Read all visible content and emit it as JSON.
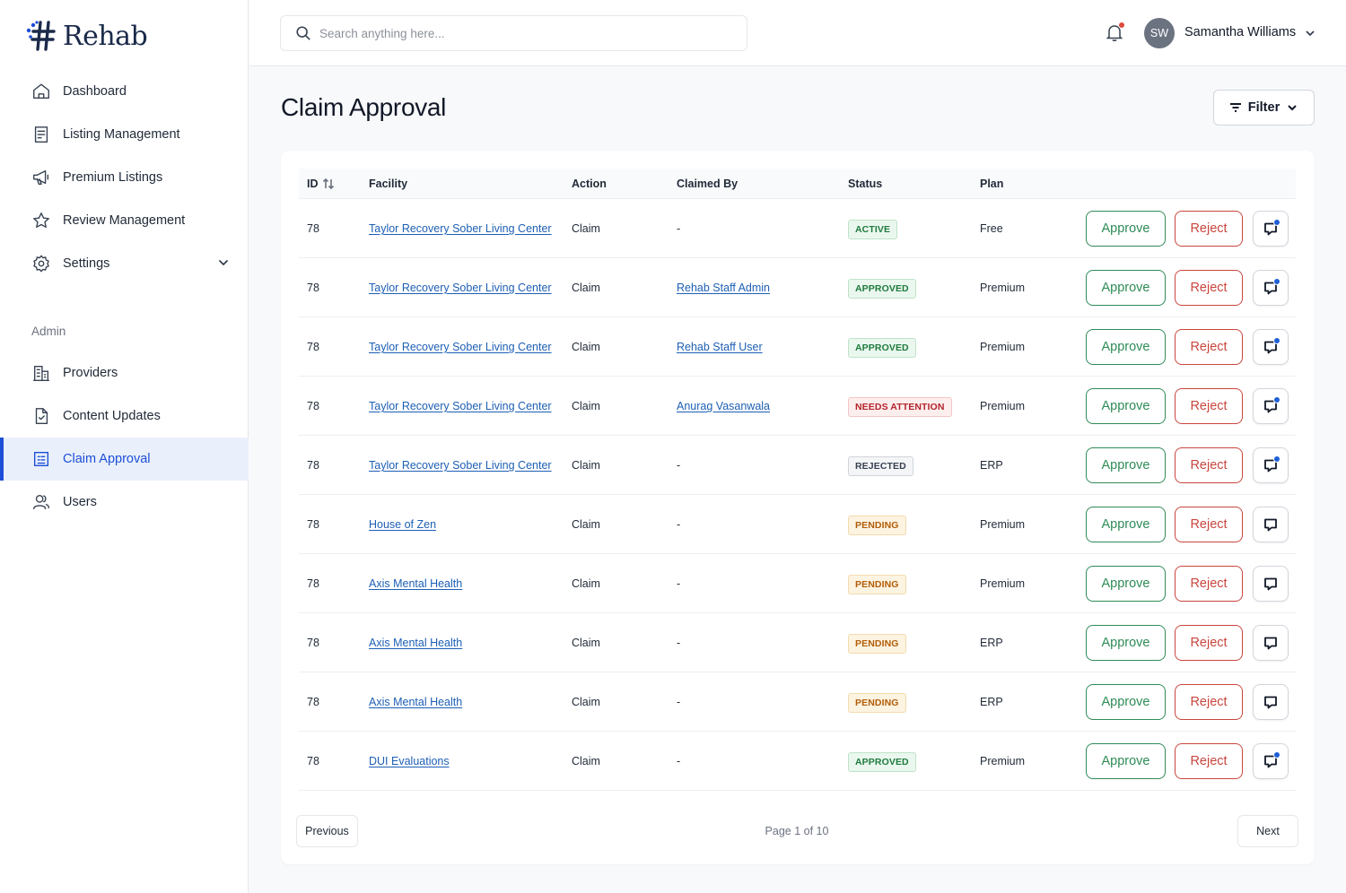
{
  "brand": {
    "name": "Rehab",
    "logo_icon": "rehab-logo-icon",
    "accent": "#1d4ed8"
  },
  "sidebar": {
    "items": [
      {
        "label": "Dashboard",
        "icon": "home-icon"
      },
      {
        "label": "Listing Management",
        "icon": "document-list-icon"
      },
      {
        "label": "Premium Listings",
        "icon": "megaphone-icon"
      },
      {
        "label": "Review Management",
        "icon": "star-icon"
      },
      {
        "label": "Settings",
        "icon": "gear-icon"
      }
    ],
    "admin_label": "Admin",
    "admin_items": [
      {
        "label": "Providers",
        "icon": "building-icon"
      },
      {
        "label": "Content Updates",
        "icon": "file-check-icon"
      },
      {
        "label": "Claim Approval",
        "icon": "clipboard-list-icon",
        "active": true
      },
      {
        "label": "Users",
        "icon": "users-icon"
      }
    ]
  },
  "topbar": {
    "search_placeholder": "Search anything here...",
    "user_initials": "SW",
    "user_name": "Samantha Williams"
  },
  "page": {
    "title": "Claim Approval",
    "filter_label": "Filter"
  },
  "table": {
    "columns": {
      "id": "ID",
      "facility": "Facility",
      "action": "Action",
      "claimed_by": "Claimed By",
      "status": "Status",
      "plan": "Plan"
    },
    "approve_label": "Approve",
    "reject_label": "Reject",
    "rows": [
      {
        "id": "78",
        "facility": "Taylor Recovery Sober Living Center",
        "action": "Claim",
        "claimed_by": "-",
        "claimed_link": false,
        "status": "ACTIVE",
        "status_kind": "active",
        "plan": "Free",
        "has_comment": true
      },
      {
        "id": "78",
        "facility": "Taylor Recovery Sober Living Center",
        "action": "Claim",
        "claimed_by": "Rehab Staff Admin",
        "claimed_link": true,
        "status": "APPROVED",
        "status_kind": "approved",
        "plan": "Premium",
        "has_comment": true
      },
      {
        "id": "78",
        "facility": "Taylor Recovery Sober Living Center",
        "action": "Claim",
        "claimed_by": "Rehab Staff User",
        "claimed_link": true,
        "status": "APPROVED",
        "status_kind": "approved",
        "plan": "Premium",
        "has_comment": true
      },
      {
        "id": "78",
        "facility": "Taylor Recovery Sober Living Center",
        "action": "Claim",
        "claimed_by": "Anurag Vasanwala",
        "claimed_link": true,
        "status": "NEEDS ATTENTION",
        "status_kind": "needs",
        "plan": "Premium",
        "has_comment": true
      },
      {
        "id": "78",
        "facility": "Taylor Recovery Sober Living Center",
        "action": "Claim",
        "claimed_by": "-",
        "claimed_link": false,
        "status": "REJECTED",
        "status_kind": "rejected",
        "plan": "ERP",
        "has_comment": true
      },
      {
        "id": "78",
        "facility": "House of Zen",
        "action": "Claim",
        "claimed_by": "-",
        "claimed_link": false,
        "status": "PENDING",
        "status_kind": "pending",
        "plan": "Premium",
        "has_comment": false
      },
      {
        "id": "78",
        "facility": "Axis Mental Health",
        "action": "Claim",
        "claimed_by": "-",
        "claimed_link": false,
        "status": "PENDING",
        "status_kind": "pending",
        "plan": "Premium",
        "has_comment": false
      },
      {
        "id": "78",
        "facility": "Axis Mental Health",
        "action": "Claim",
        "claimed_by": "-",
        "claimed_link": false,
        "status": "PENDING",
        "status_kind": "pending",
        "plan": "ERP",
        "has_comment": false
      },
      {
        "id": "78",
        "facility": "Axis Mental Health",
        "action": "Claim",
        "claimed_by": "-",
        "claimed_link": false,
        "status": "PENDING",
        "status_kind": "pending",
        "plan": "ERP",
        "has_comment": false
      },
      {
        "id": "78",
        "facility": "DUI Evaluations",
        "action": "Claim",
        "claimed_by": "-",
        "claimed_link": false,
        "status": "APPROVED",
        "status_kind": "approved",
        "plan": "Premium",
        "has_comment": true
      }
    ]
  },
  "pagination": {
    "previous_label": "Previous",
    "next_label": "Next",
    "info": "Page 1 of 10"
  },
  "colors": {
    "approve": "#2e8b57",
    "reject": "#c9463d",
    "link": "#1d5fb4",
    "notification_dot": "#dc4a3b",
    "comment_dot": "#1d5fd6"
  }
}
